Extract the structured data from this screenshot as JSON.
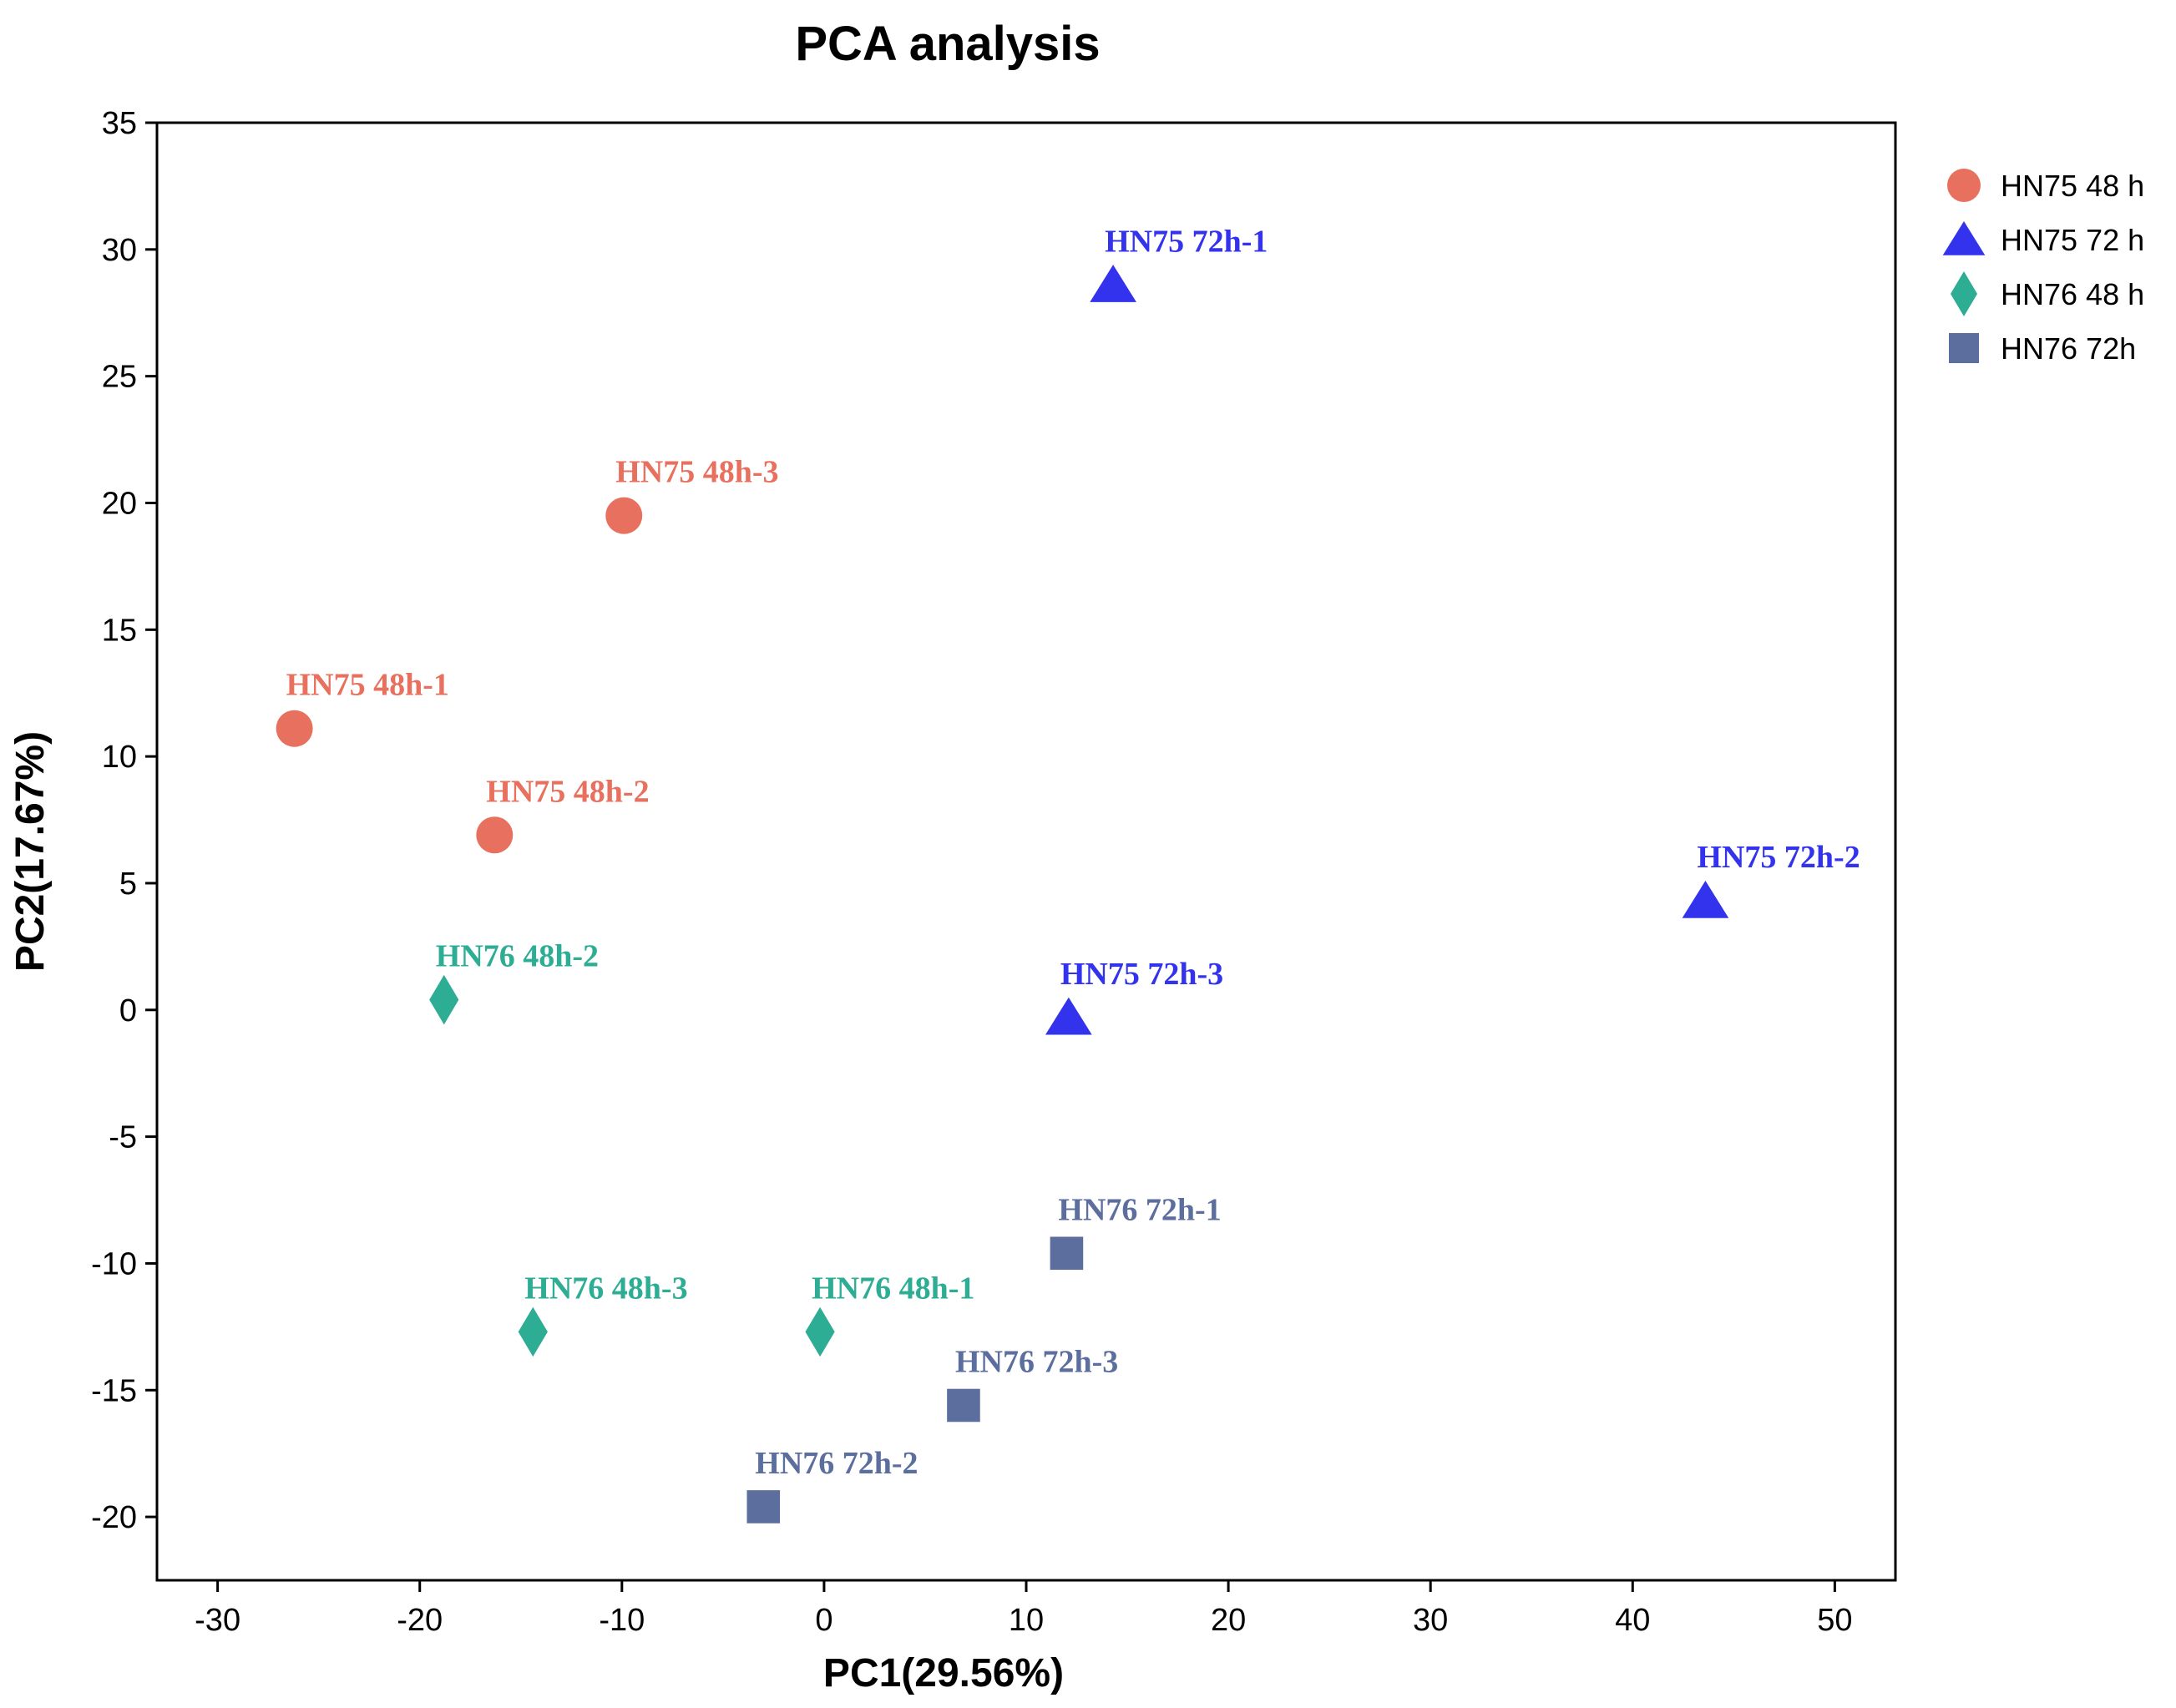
{
  "chart_data": {
    "type": "scatter",
    "title": "PCA analysis",
    "xlabel": "PC1(29.56%)",
    "ylabel": "PC2(17.67%)",
    "xlim": [
      -33,
      53
    ],
    "ylim": [
      -22.5,
      35
    ],
    "xticks": [
      -30,
      -20,
      -10,
      0,
      10,
      20,
      30,
      40,
      50
    ],
    "yticks": [
      35,
      30,
      25,
      20,
      15,
      10,
      5,
      0,
      -5,
      -10,
      -15,
      -20
    ],
    "grid": false,
    "legend_position": "top-right",
    "series": [
      {
        "name": "HN75 48 h",
        "marker": "circle",
        "color": "#E8705E",
        "points": [
          {
            "label": "HN75 48h-1",
            "x": -26.2,
            "y": 11.1
          },
          {
            "label": "HN75 48h-2",
            "x": -16.3,
            "y": 6.9
          },
          {
            "label": "HN75 48h-3",
            "x": -9.9,
            "y": 19.5
          }
        ]
      },
      {
        "name": "HN75 72 h",
        "marker": "triangle",
        "color": "#3333EE",
        "points": [
          {
            "label": "HN75 72h-1",
            "x": 14.3,
            "y": 28.6
          },
          {
            "label": "HN75 72h-2",
            "x": 43.6,
            "y": 4.3
          },
          {
            "label": "HN75 72h-3",
            "x": 12.1,
            "y": -0.3
          }
        ]
      },
      {
        "name": "HN76 48 h",
        "marker": "diamond",
        "color": "#2EAD95",
        "points": [
          {
            "label": "HN76 48h-1",
            "x": -0.2,
            "y": -12.7
          },
          {
            "label": "HN76 48h-2",
            "x": -18.8,
            "y": 0.4
          },
          {
            "label": "HN76 48h-3",
            "x": -14.4,
            "y": -12.7
          }
        ]
      },
      {
        "name": "HN76 72h",
        "marker": "square",
        "color": "#5B6E9E",
        "points": [
          {
            "label": "HN76 72h-1",
            "x": 12.0,
            "y": -9.6
          },
          {
            "label": "HN76 72h-2",
            "x": -3.0,
            "y": -19.6
          },
          {
            "label": "HN76 72h-3",
            "x": 6.9,
            "y": -15.6
          }
        ]
      }
    ]
  }
}
